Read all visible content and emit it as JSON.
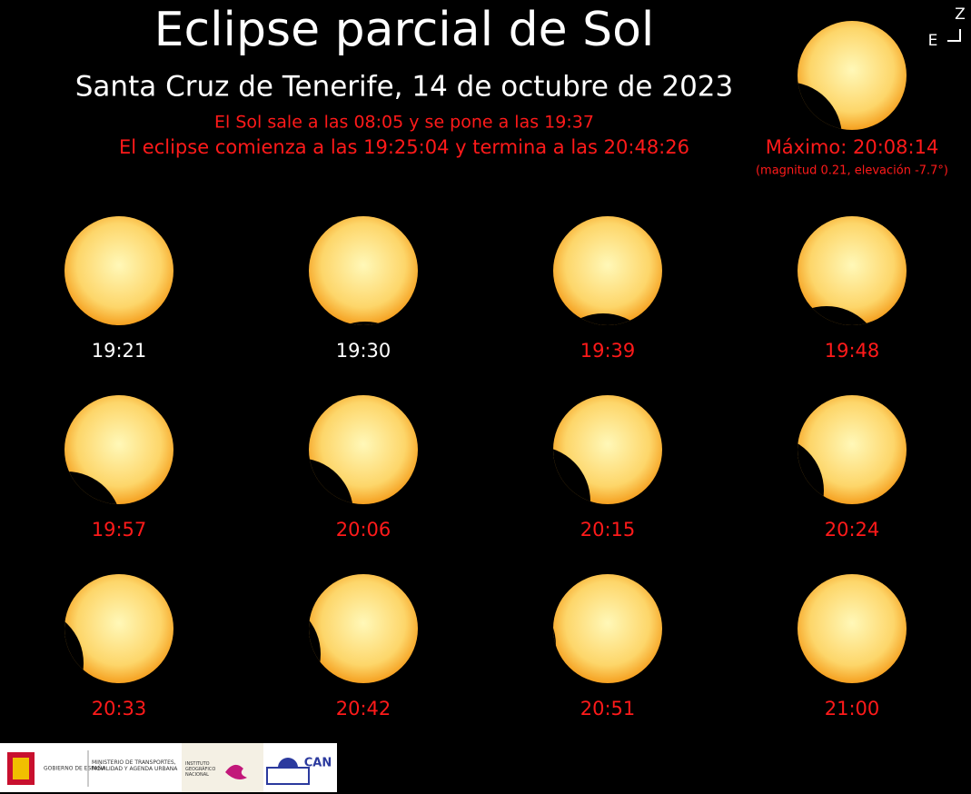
{
  "header": {
    "title": "Eclipse parcial de Sol",
    "subtitle": "Santa Cruz de Tenerife, 14 de octubre de 2023",
    "sun_times": "El Sol sale a las 08:05 y se pone a las 19:37",
    "eclipse_times": "El eclipse comienza a las 19:25:04 y termina a las 20:48:26"
  },
  "maximum": {
    "label": "Máximo: 20:08:14",
    "details": "(magnitud 0.21, elevación -7.7°)"
  },
  "compass": {
    "zenith": "Z",
    "east": "E"
  },
  "frames": [
    {
      "time": "19:21",
      "color": "#ffffff"
    },
    {
      "time": "19:30",
      "color": "#ffffff"
    },
    {
      "time": "19:39",
      "color": "#ff1a1a"
    },
    {
      "time": "19:48",
      "color": "#ff1a1a"
    },
    {
      "time": "19:57",
      "color": "#ff1a1a"
    },
    {
      "time": "20:06",
      "color": "#ff1a1a"
    },
    {
      "time": "20:15",
      "color": "#ff1a1a"
    },
    {
      "time": "20:24",
      "color": "#ff1a1a"
    },
    {
      "time": "20:33",
      "color": "#ff1a1a"
    },
    {
      "time": "20:42",
      "color": "#ff1a1a"
    },
    {
      "time": "20:51",
      "color": "#ff1a1a"
    },
    {
      "time": "21:00",
      "color": "#ff1a1a"
    }
  ],
  "footer": {
    "government": "GOBIERNO DE ESPAÑA",
    "ministry": "MINISTERIO DE TRANSPORTES, MOVILIDAD Y AGENDA URBANA",
    "institute": "INSTITUTO GEOGRÁFICO NACIONAL",
    "can": "CAN"
  }
}
